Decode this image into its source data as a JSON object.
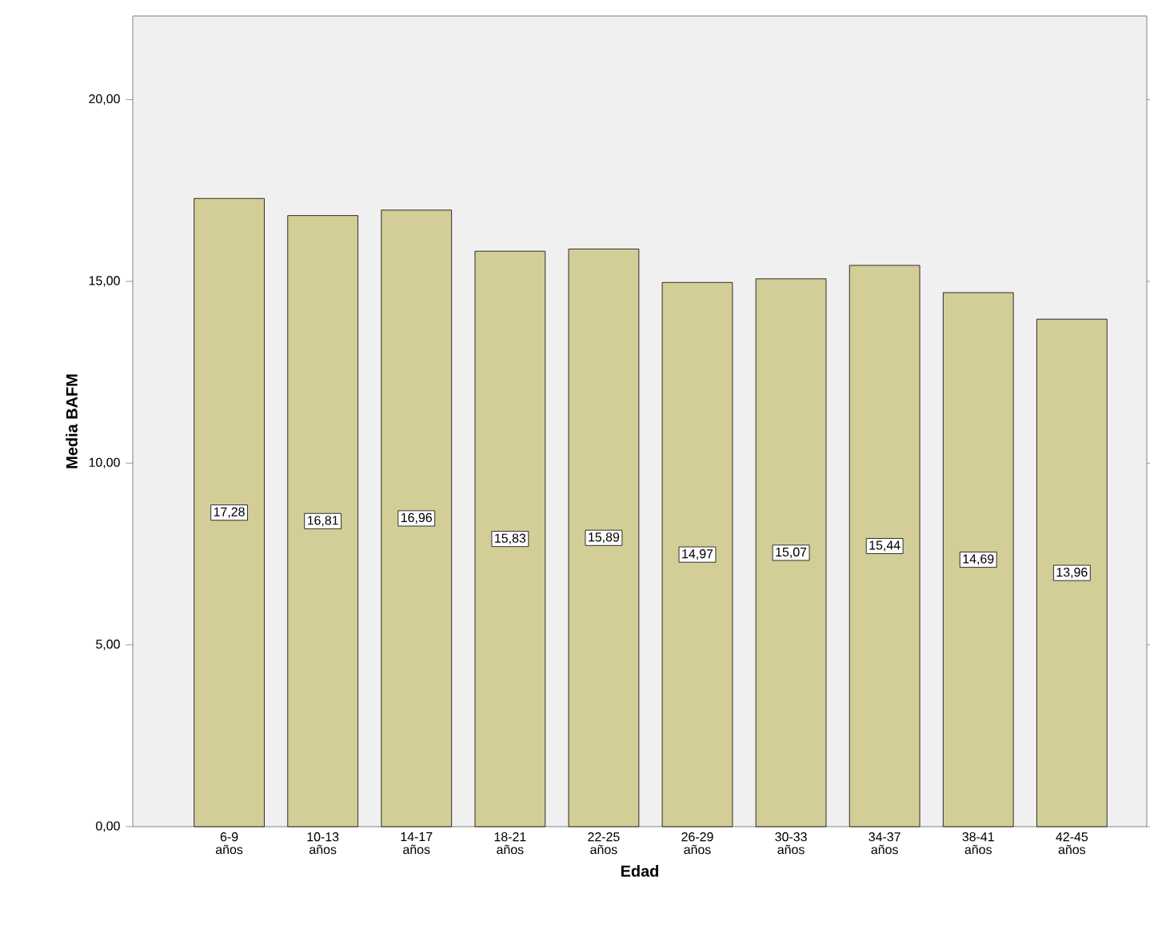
{
  "chart_data": {
    "type": "bar",
    "xlabel": "Edad",
    "ylabel": "Media BAFM",
    "categories": [
      "6-9 años",
      "10-13 años",
      "14-17 años",
      "18-21 años",
      "22-25 años",
      "26-29 años",
      "30-33 años",
      "34-37 años",
      "38-41 años",
      "42-45 años"
    ],
    "values": [
      17.28,
      16.81,
      16.96,
      15.83,
      15.89,
      14.97,
      15.07,
      15.44,
      14.69,
      13.96
    ],
    "value_labels": [
      "17,28",
      "16,81",
      "16,96",
      "15,83",
      "15,89",
      "14,97",
      "15,07",
      "15,44",
      "14,69",
      "13,96"
    ],
    "color": "#d3ce97",
    "ylim": [
      0,
      22.3
    ],
    "yticks": [
      {
        "value": 0,
        "label": "0,00"
      },
      {
        "value": 5,
        "label": "5,00"
      },
      {
        "value": 10,
        "label": "10,00"
      },
      {
        "value": 15,
        "label": "15,00"
      },
      {
        "value": 20,
        "label": "20,00"
      }
    ],
    "grid": false
  }
}
